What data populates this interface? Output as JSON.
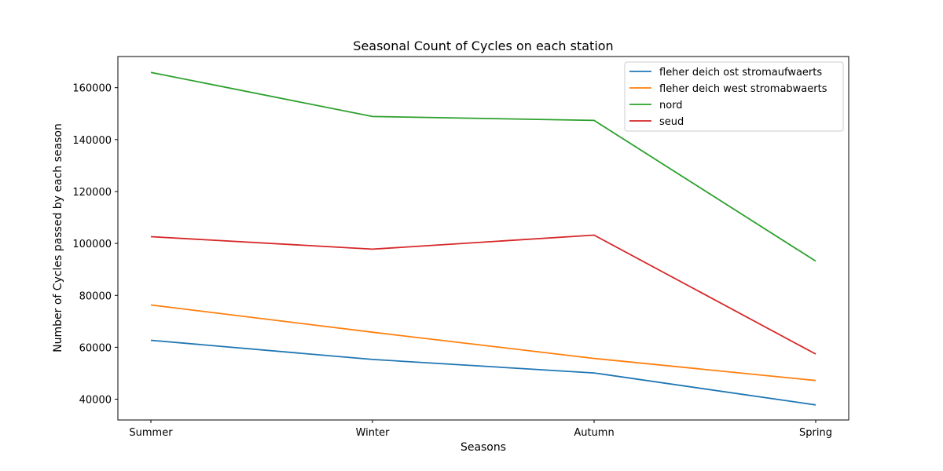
{
  "chart_data": {
    "type": "line",
    "title": "Seasonal Count of Cycles on each station",
    "xlabel": "Seasons",
    "ylabel": "Number of Cycles passed by each season",
    "categories": [
      "Summer",
      "Winter",
      "Autumn",
      "Spring"
    ],
    "ylim": [
      32000,
      172000
    ],
    "yticks": [
      40000,
      60000,
      80000,
      100000,
      120000,
      140000,
      160000
    ],
    "grid": false,
    "legend_position": "top-right",
    "series": [
      {
        "name": "fleher deich ost stromaufwaerts",
        "color": "#1f77b4",
        "values": [
          62700,
          55300,
          50100,
          37800
        ]
      },
      {
        "name": "fleher deich west stromabwaerts",
        "color": "#ff7f0e",
        "values": [
          76300,
          65800,
          55700,
          47200
        ]
      },
      {
        "name": "nord",
        "color": "#2ca02c",
        "values": [
          165900,
          148900,
          147400,
          93200
        ]
      },
      {
        "name": "seud",
        "color": "#d62728",
        "values": [
          102600,
          97800,
          103200,
          57400
        ]
      }
    ]
  }
}
